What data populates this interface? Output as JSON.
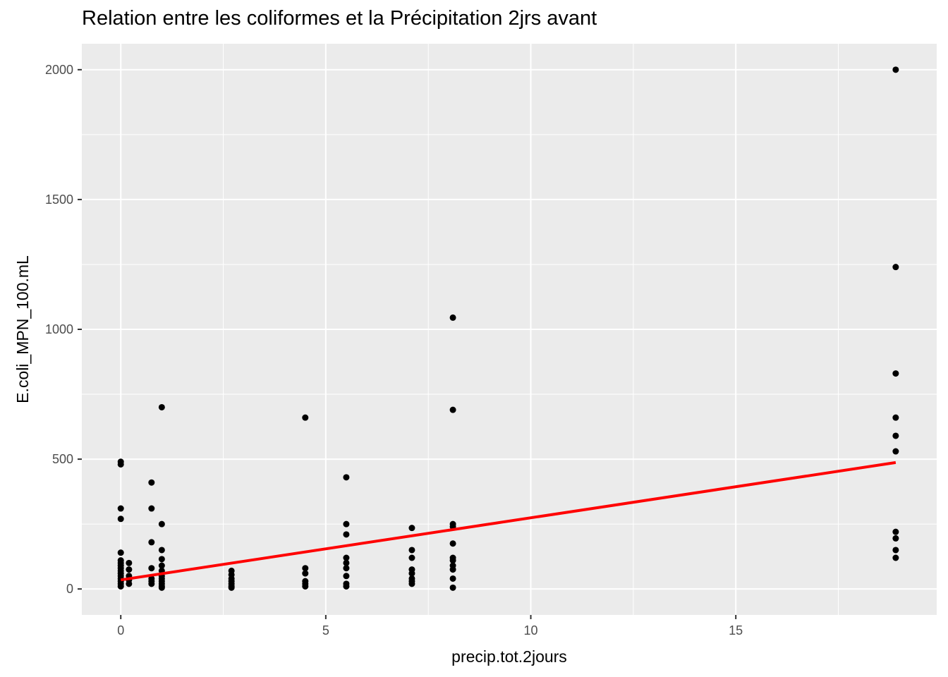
{
  "chart_data": {
    "type": "scatter",
    "title": "Relation entre les coliformes et la Précipitation 2jrs avant",
    "xlabel": "precip.tot.2jours",
    "ylabel": "E.coli_MPN_100.mL",
    "xlim": [
      -0.95,
      19.9
    ],
    "ylim": [
      -100,
      2100
    ],
    "x_ticks": [
      0,
      5,
      10,
      15
    ],
    "y_ticks": [
      0,
      500,
      1000,
      1500,
      2000
    ],
    "x_tick_labels": [
      "0",
      "5",
      "10",
      "15"
    ],
    "y_tick_labels": [
      "0",
      "500",
      "1000",
      "1500",
      "2000"
    ],
    "grid": true,
    "background": "#ebebeb",
    "grid_color": "#ffffff",
    "point_color": "#000000",
    "line_color": "#ff0000",
    "series": [
      {
        "type": "scatter",
        "points": [
          [
            0,
            490
          ],
          [
            0,
            480
          ],
          [
            0,
            310
          ],
          [
            0,
            270
          ],
          [
            0,
            140
          ],
          [
            0,
            110
          ],
          [
            0,
            100
          ],
          [
            0,
            90
          ],
          [
            0,
            80
          ],
          [
            0,
            70
          ],
          [
            0,
            60
          ],
          [
            0,
            50
          ],
          [
            0,
            40
          ],
          [
            0,
            30
          ],
          [
            0,
            20
          ],
          [
            0,
            10
          ],
          [
            0.2,
            100
          ],
          [
            0.2,
            75
          ],
          [
            0.2,
            50
          ],
          [
            0.2,
            35
          ],
          [
            0.2,
            20
          ],
          [
            0.75,
            410
          ],
          [
            0.75,
            310
          ],
          [
            0.75,
            180
          ],
          [
            0.75,
            80
          ],
          [
            0.75,
            40
          ],
          [
            0.75,
            30
          ],
          [
            0.75,
            20
          ],
          [
            1,
            700
          ],
          [
            1,
            250
          ],
          [
            1,
            150
          ],
          [
            1,
            115
          ],
          [
            1,
            90
          ],
          [
            1,
            70
          ],
          [
            1,
            50
          ],
          [
            1,
            40
          ],
          [
            1,
            30
          ],
          [
            1,
            20
          ],
          [
            1,
            10
          ],
          [
            1,
            5
          ],
          [
            2.7,
            70
          ],
          [
            2.7,
            55
          ],
          [
            2.7,
            40
          ],
          [
            2.7,
            30
          ],
          [
            2.7,
            20
          ],
          [
            2.7,
            10
          ],
          [
            2.7,
            5
          ],
          [
            4.5,
            660
          ],
          [
            4.5,
            80
          ],
          [
            4.5,
            60
          ],
          [
            4.5,
            30
          ],
          [
            4.5,
            20
          ],
          [
            4.5,
            10
          ],
          [
            5.5,
            430
          ],
          [
            5.5,
            250
          ],
          [
            5.5,
            210
          ],
          [
            5.5,
            120
          ],
          [
            5.5,
            100
          ],
          [
            5.5,
            80
          ],
          [
            5.5,
            50
          ],
          [
            5.5,
            20
          ],
          [
            5.5,
            10
          ],
          [
            7.1,
            235
          ],
          [
            7.1,
            150
          ],
          [
            7.1,
            120
          ],
          [
            7.1,
            75
          ],
          [
            7.1,
            60
          ],
          [
            7.1,
            40
          ],
          [
            7.1,
            30
          ],
          [
            7.1,
            20
          ],
          [
            8.1,
            1045
          ],
          [
            8.1,
            690
          ],
          [
            8.1,
            250
          ],
          [
            8.1,
            240
          ],
          [
            8.1,
            175
          ],
          [
            8.1,
            120
          ],
          [
            8.1,
            110
          ],
          [
            8.1,
            90
          ],
          [
            8.1,
            75
          ],
          [
            8.1,
            40
          ],
          [
            8.1,
            5
          ],
          [
            18.9,
            2000
          ],
          [
            18.9,
            1240
          ],
          [
            18.9,
            830
          ],
          [
            18.9,
            660
          ],
          [
            18.9,
            590
          ],
          [
            18.9,
            530
          ],
          [
            18.9,
            220
          ],
          [
            18.9,
            195
          ],
          [
            18.9,
            150
          ],
          [
            18.9,
            120
          ]
        ]
      },
      {
        "type": "line",
        "points": [
          [
            0,
            35
          ],
          [
            18.9,
            487
          ]
        ]
      }
    ]
  }
}
